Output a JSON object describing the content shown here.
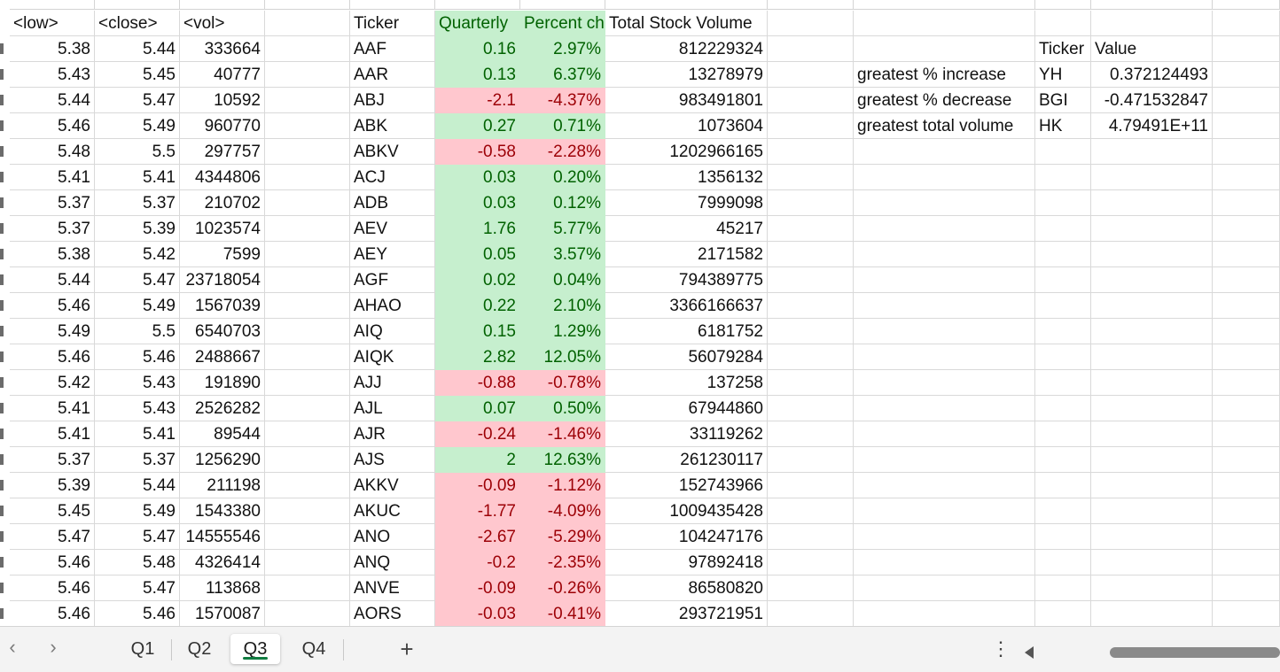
{
  "header_row": [
    "<low>",
    "<close>",
    "<vol>",
    "",
    "Ticker",
    "Quarterly",
    "Percent ch",
    "Total Stock Volume",
    "",
    "",
    "",
    ""
  ],
  "summary": {
    "headers": {
      "ticker": "Ticker",
      "value": "Value"
    },
    "rows": [
      {
        "label": "greatest % increase",
        "ticker": "YH",
        "value": "0.372124493"
      },
      {
        "label": "greatest % decrease",
        "ticker": "BGI",
        "value": "-0.471532847"
      },
      {
        "label": "greatest total volume",
        "ticker": "HK",
        "value": "4.79491E+11"
      }
    ]
  },
  "rows": [
    [
      "5.38",
      "5.44",
      "333664",
      "AAF",
      "0.16",
      "2.97%",
      "812229324",
      "green"
    ],
    [
      "5.43",
      "5.45",
      "40777",
      "AAR",
      "0.13",
      "6.37%",
      "13278979",
      "green"
    ],
    [
      "5.44",
      "5.47",
      "10592",
      "ABJ",
      "-2.1",
      "-4.37%",
      "983491801",
      "red"
    ],
    [
      "5.46",
      "5.49",
      "960770",
      "ABK",
      "0.27",
      "0.71%",
      "1073604",
      "green"
    ],
    [
      "5.48",
      "5.5",
      "297757",
      "ABKV",
      "-0.58",
      "-2.28%",
      "1202966165",
      "red"
    ],
    [
      "5.41",
      "5.41",
      "4344806",
      "ACJ",
      "0.03",
      "0.20%",
      "1356132",
      "green"
    ],
    [
      "5.37",
      "5.37",
      "210702",
      "ADB",
      "0.03",
      "0.12%",
      "7999098",
      "green"
    ],
    [
      "5.37",
      "5.39",
      "1023574",
      "AEV",
      "1.76",
      "5.77%",
      "45217",
      "green"
    ],
    [
      "5.38",
      "5.42",
      "7599",
      "AEY",
      "0.05",
      "3.57%",
      "2171582",
      "green"
    ],
    [
      "5.44",
      "5.47",
      "23718054",
      "AGF",
      "0.02",
      "0.04%",
      "794389775",
      "green"
    ],
    [
      "5.46",
      "5.49",
      "1567039",
      "AHAO",
      "0.22",
      "2.10%",
      "3366166637",
      "green"
    ],
    [
      "5.49",
      "5.5",
      "6540703",
      "AIQ",
      "0.15",
      "1.29%",
      "6181752",
      "green"
    ],
    [
      "5.46",
      "5.46",
      "2488667",
      "AIQK",
      "2.82",
      "12.05%",
      "56079284",
      "green"
    ],
    [
      "5.42",
      "5.43",
      "191890",
      "AJJ",
      "-0.88",
      "-0.78%",
      "137258",
      "red"
    ],
    [
      "5.41",
      "5.43",
      "2526282",
      "AJL",
      "0.07",
      "0.50%",
      "67944860",
      "green"
    ],
    [
      "5.41",
      "5.41",
      "89544",
      "AJR",
      "-0.24",
      "-1.46%",
      "33119262",
      "red"
    ],
    [
      "5.37",
      "5.37",
      "1256290",
      "AJS",
      "2",
      "12.63%",
      "261230117",
      "green"
    ],
    [
      "5.39",
      "5.44",
      "211198",
      "AKKV",
      "-0.09",
      "-1.12%",
      "152743966",
      "red"
    ],
    [
      "5.45",
      "5.49",
      "1543380",
      "AKUC",
      "-1.77",
      "-4.09%",
      "1009435428",
      "red"
    ],
    [
      "5.47",
      "5.47",
      "14555546",
      "ANO",
      "-2.67",
      "-5.29%",
      "104247176",
      "red"
    ],
    [
      "5.46",
      "5.48",
      "4326414",
      "ANQ",
      "-0.2",
      "-2.35%",
      "97892418",
      "red"
    ],
    [
      "5.46",
      "5.47",
      "113868",
      "ANVE",
      "-0.09",
      "-0.26%",
      "86580820",
      "red"
    ],
    [
      "5.46",
      "5.46",
      "1570087",
      "AORS",
      "-0.03",
      "-0.41%",
      "293721951",
      "red"
    ]
  ],
  "sheet_tabs": {
    "items": [
      "Q1",
      "Q2",
      "Q3",
      "Q4"
    ],
    "active": "Q3",
    "add_label": "+"
  },
  "nav": {
    "prev": "‹",
    "next": "›",
    "more": "⋮"
  },
  "colors": {
    "positive_fill": "#c6efce",
    "positive_text": "#006100",
    "negative_fill": "#ffc7ce",
    "negative_text": "#9c0006",
    "active_tab_accent": "#107c41"
  }
}
